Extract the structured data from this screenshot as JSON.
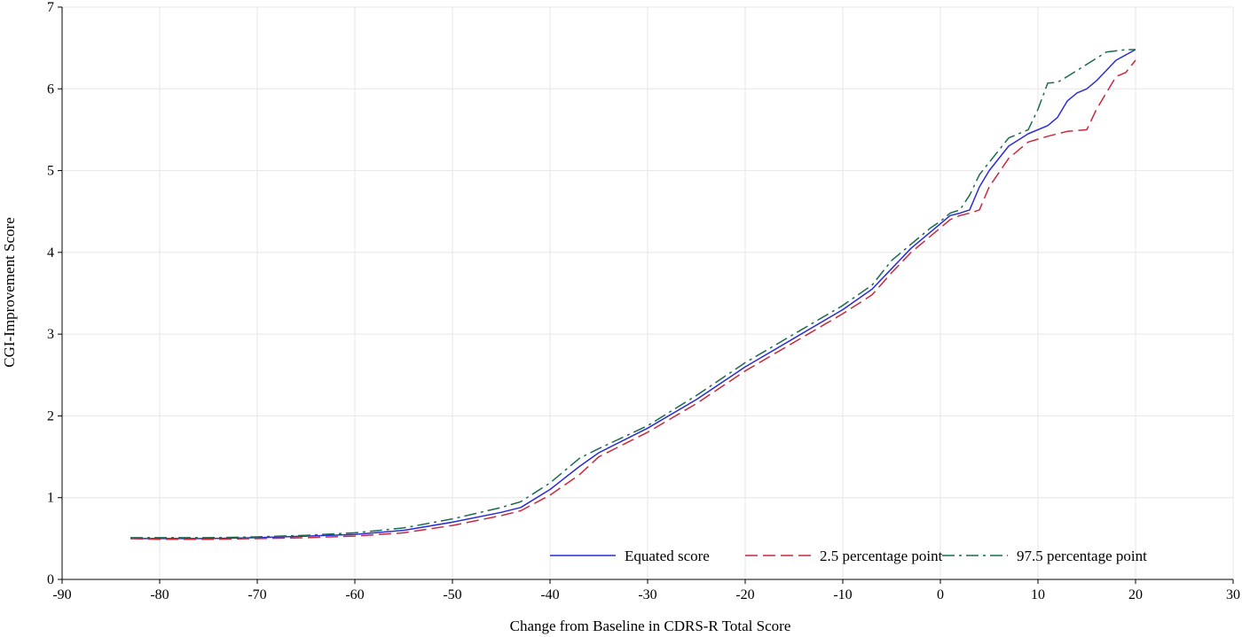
{
  "chart_data": {
    "type": "line",
    "title": "",
    "xlabel": "Change from Baseline in CDRS-R Total Score",
    "ylabel": "CGI-Improvement Score",
    "xlim": [
      -90,
      30
    ],
    "ylim": [
      0,
      7
    ],
    "xticks": [
      -90,
      -80,
      -70,
      -60,
      -50,
      -40,
      -30,
      -20,
      -10,
      0,
      10,
      20,
      30
    ],
    "yticks": [
      0,
      1,
      2,
      3,
      4,
      5,
      6,
      7
    ],
    "grid": true,
    "legend_position": "bottom-right",
    "series": [
      {
        "name": "Equated score",
        "color": "#2b2bd9",
        "dash": "solid",
        "x": [
          -83,
          -80,
          -75,
          -70,
          -65,
          -60,
          -55,
          -50,
          -45,
          -43,
          -40,
          -37,
          -35,
          -30,
          -25,
          -20,
          -15,
          -10,
          -7,
          -5,
          -3,
          -1,
          0,
          1,
          2,
          3,
          4,
          5,
          7,
          9,
          11,
          12,
          13,
          14,
          15,
          16,
          18,
          20
        ],
        "y": [
          0.5,
          0.5,
          0.5,
          0.51,
          0.53,
          0.55,
          0.6,
          0.7,
          0.82,
          0.88,
          1.1,
          1.38,
          1.55,
          1.85,
          2.2,
          2.6,
          2.95,
          3.3,
          3.55,
          3.8,
          4.05,
          4.25,
          4.35,
          4.45,
          4.48,
          4.52,
          4.8,
          5.0,
          5.3,
          5.45,
          5.55,
          5.65,
          5.85,
          5.95,
          6.0,
          6.1,
          6.35,
          6.48
        ]
      },
      {
        "name": "2.5 percentage point",
        "color": "#c8283c",
        "dash": "long-dash",
        "x": [
          -83,
          -80,
          -75,
          -70,
          -65,
          -60,
          -55,
          -50,
          -45,
          -43,
          -40,
          -37,
          -35,
          -30,
          -25,
          -20,
          -15,
          -10,
          -7,
          -5,
          -3,
          -1,
          0,
          1,
          2,
          3,
          4,
          5,
          7,
          9,
          11,
          13,
          15,
          16,
          18,
          19,
          20
        ],
        "y": [
          0.5,
          0.49,
          0.49,
          0.5,
          0.51,
          0.53,
          0.57,
          0.66,
          0.78,
          0.84,
          1.03,
          1.28,
          1.5,
          1.8,
          2.15,
          2.55,
          2.9,
          3.25,
          3.48,
          3.75,
          4.0,
          4.2,
          4.3,
          4.4,
          4.45,
          4.48,
          4.52,
          4.8,
          5.15,
          5.35,
          5.42,
          5.48,
          5.5,
          5.75,
          6.15,
          6.2,
          6.35
        ]
      },
      {
        "name": "97.5 percentage point",
        "color": "#1a6b4f",
        "dash": "dash-dot",
        "x": [
          -83,
          -80,
          -75,
          -70,
          -65,
          -60,
          -55,
          -50,
          -45,
          -43,
          -40,
          -37,
          -35,
          -30,
          -25,
          -20,
          -15,
          -10,
          -7,
          -5,
          -3,
          -1,
          0,
          1,
          2,
          3,
          4,
          5,
          7,
          9,
          10,
          11,
          12,
          13,
          15,
          17,
          19,
          20
        ],
        "y": [
          0.51,
          0.51,
          0.51,
          0.52,
          0.54,
          0.57,
          0.63,
          0.74,
          0.88,
          0.95,
          1.18,
          1.48,
          1.6,
          1.88,
          2.25,
          2.65,
          3.0,
          3.35,
          3.6,
          3.9,
          4.1,
          4.3,
          4.38,
          4.48,
          4.52,
          4.7,
          4.95,
          5.1,
          5.4,
          5.5,
          5.75,
          6.07,
          6.08,
          6.15,
          6.3,
          6.45,
          6.48,
          6.48
        ]
      }
    ]
  }
}
